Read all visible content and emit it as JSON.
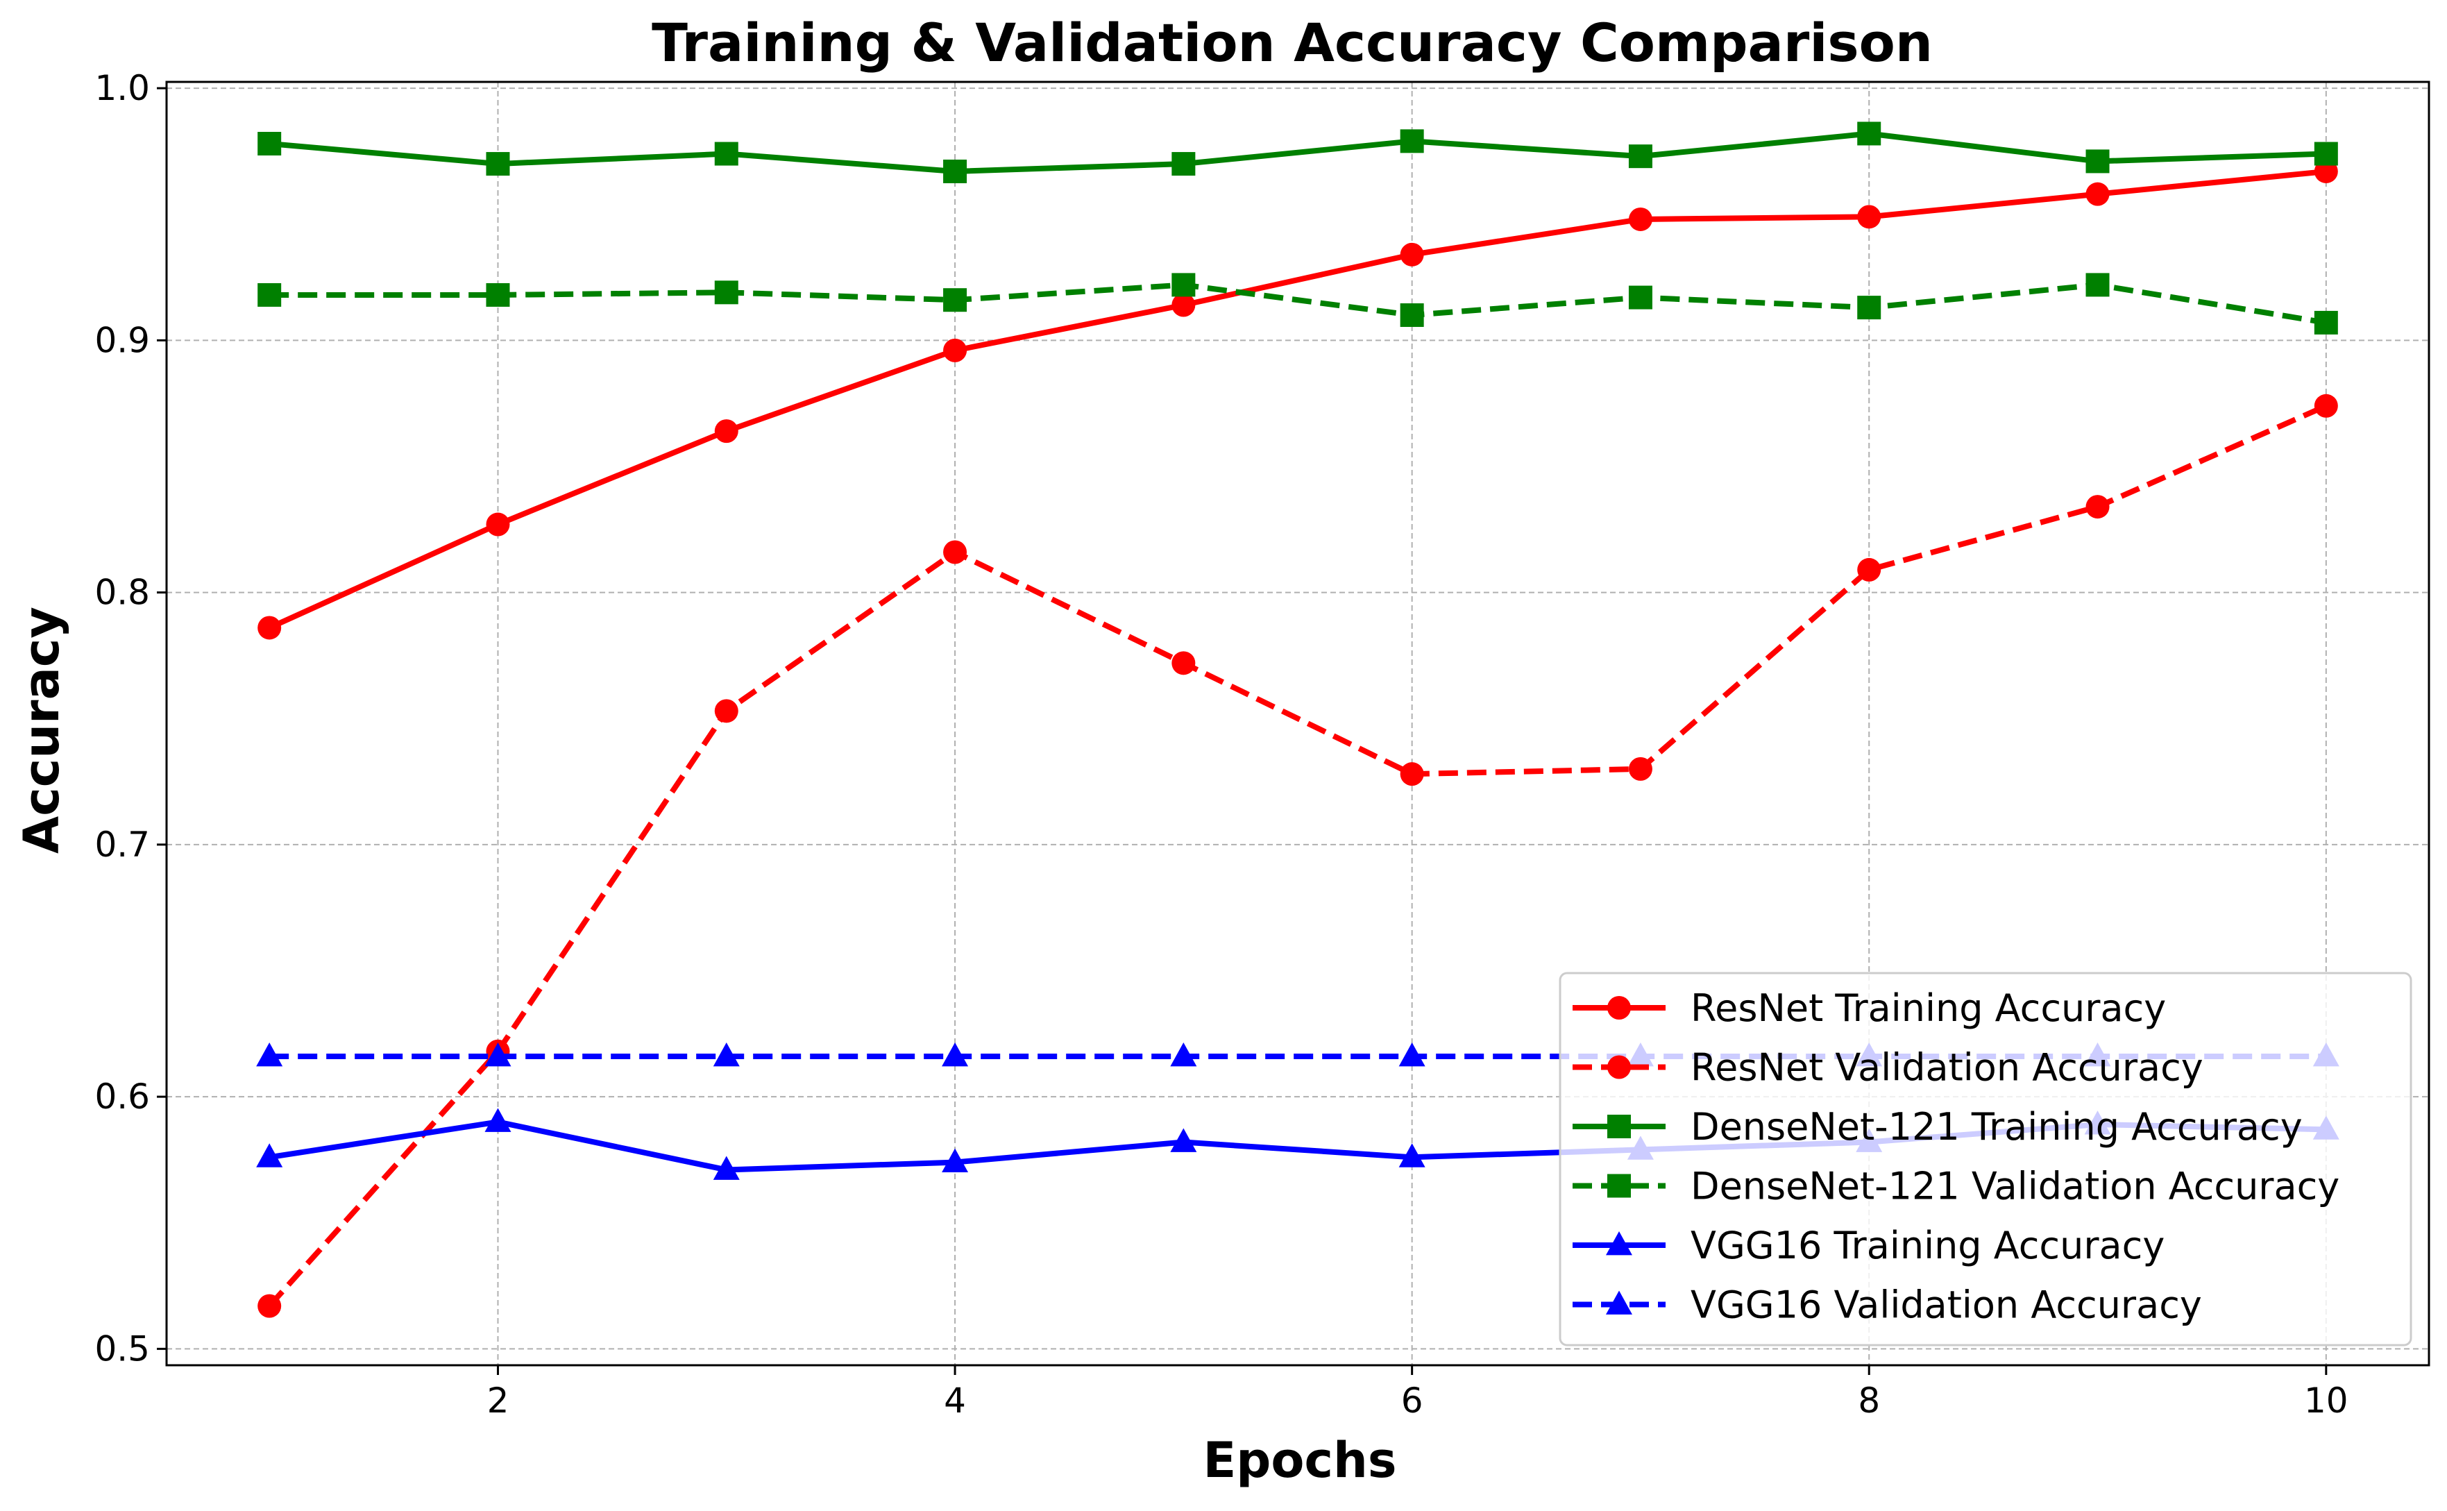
{
  "chart_data": {
    "type": "line",
    "title": "Training & Validation Accuracy Comparison",
    "xlabel": "Epochs",
    "ylabel": "Accuracy",
    "xlim": [
      0.55,
      10.45
    ],
    "ylim": [
      0.4935,
      1.0025
    ],
    "xticks": [
      2,
      4,
      6,
      8,
      10
    ],
    "yticks": [
      0.5,
      0.6,
      0.7,
      0.8,
      0.9,
      1.0
    ],
    "xtick_labels": [
      "2",
      "4",
      "6",
      "8",
      "10"
    ],
    "ytick_labels": [
      "0.5",
      "0.6",
      "0.7",
      "0.8",
      "0.9",
      "1.0"
    ],
    "grid": true,
    "legend_position": "lower-right",
    "x": [
      1,
      2,
      3,
      4,
      5,
      6,
      7,
      8,
      9,
      10
    ],
    "series": [
      {
        "name": "ResNet Training Accuracy",
        "color": "#ff0000",
        "linestyle": "solid",
        "marker": "circle",
        "values": [
          0.786,
          0.827,
          0.864,
          0.896,
          0.914,
          0.934,
          0.948,
          0.949,
          0.958,
          0.967
        ]
      },
      {
        "name": "ResNet Validation Accuracy",
        "color": "#ff0000",
        "linestyle": "dashed",
        "marker": "circle",
        "values": [
          0.517,
          0.618,
          0.753,
          0.816,
          0.772,
          0.728,
          0.73,
          0.809,
          0.834,
          0.874
        ]
      },
      {
        "name": "DenseNet-121 Training Accuracy",
        "color": "#008000",
        "linestyle": "solid",
        "marker": "square",
        "values": [
          0.978,
          0.97,
          0.974,
          0.967,
          0.97,
          0.979,
          0.973,
          0.982,
          0.971,
          0.974
        ]
      },
      {
        "name": "DenseNet-121 Validation Accuracy",
        "color": "#008000",
        "linestyle": "dashed",
        "marker": "square",
        "values": [
          0.918,
          0.918,
          0.919,
          0.916,
          0.922,
          0.91,
          0.917,
          0.913,
          0.922,
          0.907
        ]
      },
      {
        "name": "VGG16 Training Accuracy",
        "color": "#0000ff",
        "linestyle": "solid",
        "marker": "triangle",
        "values": [
          0.576,
          0.59,
          0.571,
          0.574,
          0.582,
          0.576,
          0.579,
          0.582,
          0.589,
          0.587
        ]
      },
      {
        "name": "VGG16 Validation Accuracy",
        "color": "#0000ff",
        "linestyle": "dashed",
        "marker": "triangle",
        "values": [
          0.616,
          0.616,
          0.616,
          0.616,
          0.616,
          0.616,
          0.616,
          0.616,
          0.616,
          0.616
        ]
      }
    ]
  }
}
